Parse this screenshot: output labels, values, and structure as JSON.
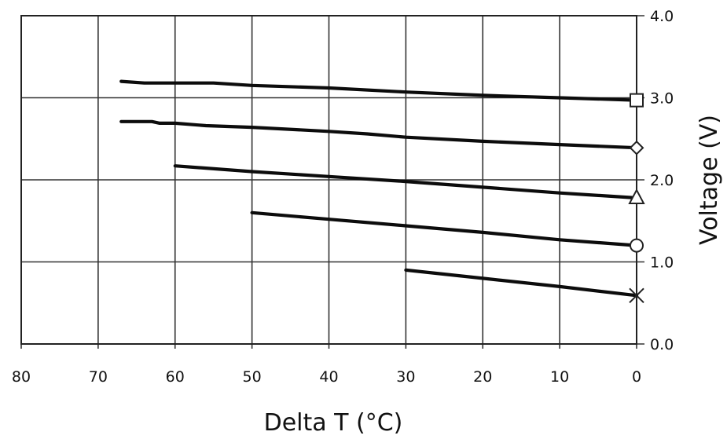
{
  "chart_data": {
    "type": "line",
    "xlabel": "Delta T (°C)",
    "ylabel": "Voltage (V)",
    "xlim": [
      0,
      80
    ],
    "ylim": [
      0,
      4
    ],
    "x_reversed": true,
    "y_axis_side": "right",
    "grid": true,
    "legend": "none",
    "x_ticks": [
      "80",
      "70",
      "60",
      "50",
      "40",
      "30",
      "20",
      "10",
      "0"
    ],
    "x_tick_values": [
      80,
      70,
      60,
      50,
      40,
      30,
      20,
      10,
      0
    ],
    "y_ticks": [
      "0.0",
      "1.0",
      "2.0",
      "3.0",
      "4.0"
    ],
    "y_tick_values": [
      0,
      1,
      2,
      3,
      4
    ],
    "series": [
      {
        "marker": "square",
        "x": [
          67,
          64,
          60,
          55,
          50,
          40,
          30,
          20,
          10,
          0
        ],
        "y": [
          3.2,
          3.18,
          3.18,
          3.18,
          3.15,
          3.12,
          3.07,
          3.03,
          3.0,
          2.97
        ]
      },
      {
        "marker": "diamond",
        "x": [
          67,
          63,
          62,
          60,
          56,
          50,
          40,
          35,
          30,
          20,
          10,
          0
        ],
        "y": [
          2.71,
          2.71,
          2.69,
          2.69,
          2.66,
          2.64,
          2.59,
          2.56,
          2.52,
          2.47,
          2.43,
          2.39
        ]
      },
      {
        "marker": "triangle",
        "x": [
          60,
          50,
          40,
          30,
          20,
          10,
          0
        ],
        "y": [
          2.17,
          2.1,
          2.04,
          1.98,
          1.91,
          1.84,
          1.78
        ]
      },
      {
        "marker": "circle",
        "x": [
          50,
          40,
          30,
          20,
          10,
          0
        ],
        "y": [
          1.6,
          1.52,
          1.44,
          1.36,
          1.27,
          1.2
        ]
      },
      {
        "marker": "cross",
        "x": [
          30,
          20,
          10,
          0
        ],
        "y": [
          0.9,
          0.8,
          0.7,
          0.59
        ]
      }
    ]
  }
}
